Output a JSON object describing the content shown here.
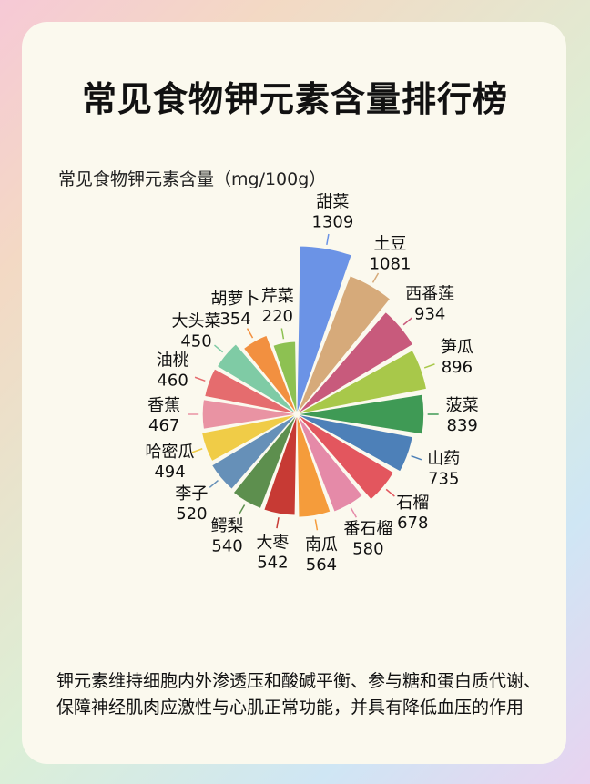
{
  "page": {
    "title": "常见食物钾元素含量排行榜",
    "description": "钾元素维持细胞内外渗透压和酸碱平衡、参与糖和蛋白质代谢、保障神经肌肉应激性与心肌正常功能，并具有降低血压的作用"
  },
  "chart_data": {
    "type": "pie",
    "title": "常见食物钾元素含量（mg/100g）",
    "unit": "mg/100g",
    "categories": [
      "甜菜",
      "土豆",
      "西番莲",
      "笋瓜",
      "菠菜",
      "山药",
      "石榴",
      "番石榴",
      "南瓜",
      "大枣",
      "鳄梨",
      "李子",
      "哈密瓜",
      "香蕉",
      "油桃",
      "大头菜",
      "胡萝卜",
      "芹菜"
    ],
    "values": [
      1309,
      1081,
      934,
      896,
      839,
      735,
      678,
      580,
      564,
      542,
      540,
      520,
      494,
      467,
      460,
      450,
      354,
      220
    ],
    "colors": [
      "#6b93e6",
      "#d6aa7a",
      "#c85a7c",
      "#a8c84a",
      "#3f9a55",
      "#4d80b8",
      "#e3565e",
      "#e58aa8",
      "#f59c3b",
      "#c73a34",
      "#5d8f4e",
      "#6690b8",
      "#f0cc47",
      "#e993a3",
      "#e56c6e",
      "#7fcba5",
      "#f29040",
      "#8dc152"
    ]
  }
}
